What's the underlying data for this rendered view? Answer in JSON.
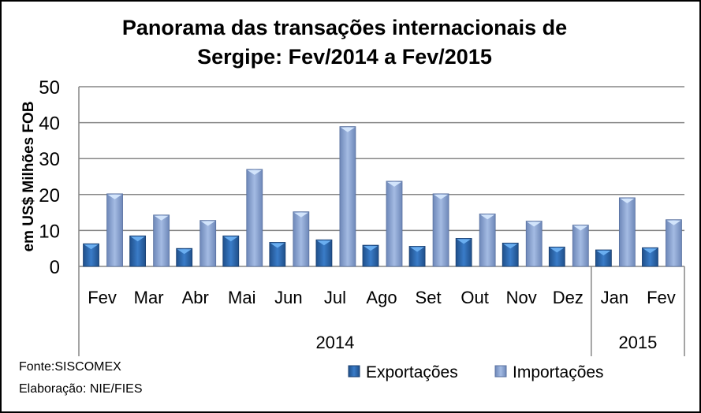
{
  "chart_data": {
    "type": "bar",
    "title_line1": "Panorama das transações internacionais de",
    "title_line2": "Sergipe: Fev/2014 a Fev/2015",
    "ylabel": "em US$ Milhões FOB",
    "ylim": [
      0,
      50
    ],
    "yticks": [
      "0",
      "10",
      "20",
      "30",
      "40",
      "50"
    ],
    "categories": [
      "Fev",
      "Mar",
      "Abr",
      "Mai",
      "Jun",
      "Jul",
      "Ago",
      "Set",
      "Out",
      "Nov",
      "Dez",
      "Jan",
      "Fev"
    ],
    "years": [
      {
        "label": "2014",
        "count": 11
      },
      {
        "label": "2015",
        "count": 2
      }
    ],
    "series": [
      {
        "name": "Exportações",
        "color": "#2e6db4",
        "values": [
          6.3,
          8.5,
          5.0,
          8.5,
          6.7,
          7.4,
          5.9,
          5.6,
          7.8,
          6.5,
          5.4,
          4.6,
          5.2
        ]
      },
      {
        "name": "Importações",
        "color": "#8ea8d8",
        "values": [
          20.2,
          14.3,
          12.8,
          27.0,
          15.2,
          38.9,
          23.7,
          20.2,
          14.6,
          12.6,
          11.5,
          19.1,
          13.0
        ]
      }
    ],
    "grid": true,
    "legend": "bottom"
  },
  "footer": {
    "source": "Fonte:SISCOMEX",
    "elaboration": "Elaboração: NIE/FIES"
  }
}
